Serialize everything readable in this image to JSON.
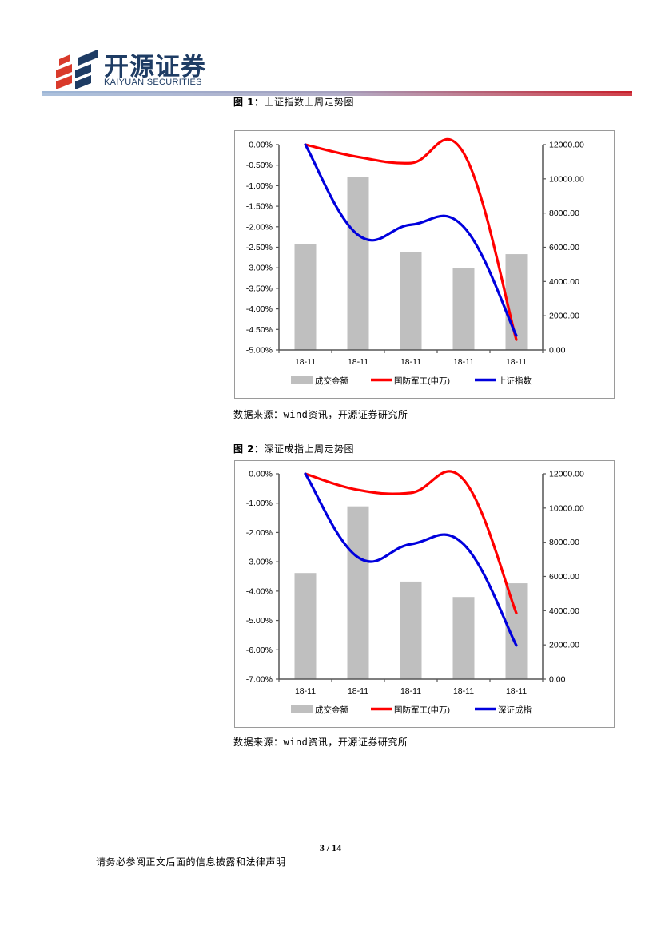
{
  "header": {
    "company_cn": "开源证券",
    "company_en": "KAIYUAN SECURITIES",
    "brand_color": "#1e3c64",
    "logo_accent": "#d93a2b"
  },
  "figures": [
    {
      "label": "图 1：",
      "title": "上证指数上周走势图",
      "source": "数据来源：wind资讯，开源证券研究所"
    },
    {
      "label": "图 2：",
      "title": "深证成指上周走势图",
      "source": "数据来源：wind资讯，开源证券研究所"
    }
  ],
  "chart_data": [
    {
      "type": "bar+line",
      "categories": [
        "18-11",
        "18-11",
        "18-11",
        "18-11",
        "18-11"
      ],
      "left_axis": {
        "min": -5.0,
        "max": 0.0,
        "step": 0.5,
        "format": "percent2",
        "ticks": [
          "0.00%",
          "-0.50%",
          "-1.00%",
          "-1.50%",
          "-2.00%",
          "-2.50%",
          "-3.00%",
          "-3.50%",
          "-4.00%",
          "-4.50%",
          "-5.00%"
        ]
      },
      "right_axis": {
        "min": 0,
        "max": 12000,
        "step": 2000,
        "ticks": [
          "12000.00",
          "10000.00",
          "8000.00",
          "6000.00",
          "4000.00",
          "2000.00",
          "0.00"
        ]
      },
      "bars": {
        "name": "成交金额",
        "axis": "right",
        "color": "#bfbfbf",
        "values": [
          6200,
          10100,
          5700,
          4800,
          5600
        ]
      },
      "series": [
        {
          "name": "国防军工(申万)",
          "axis": "left",
          "color": "#ff0000",
          "values": [
            0.0,
            -0.3,
            -0.45,
            -0.2,
            -4.75
          ]
        },
        {
          "name": "上证指数",
          "axis": "left",
          "color": "#0000dd",
          "values": [
            0.0,
            -2.2,
            -1.95,
            -2.0,
            -4.65
          ]
        }
      ],
      "grid": false,
      "legend": "bottom"
    },
    {
      "type": "bar+line",
      "categories": [
        "18-11",
        "18-11",
        "18-11",
        "18-11",
        "18-11"
      ],
      "left_axis": {
        "min": -7.0,
        "max": 0.0,
        "step": 1.0,
        "format": "percent2",
        "ticks": [
          "0.00%",
          "-1.00%",
          "-2.00%",
          "-3.00%",
          "-4.00%",
          "-5.00%",
          "-6.00%",
          "-7.00%"
        ]
      },
      "right_axis": {
        "min": 0,
        "max": 12000,
        "step": 2000,
        "ticks": [
          "12000.00",
          "10000.00",
          "8000.00",
          "6000.00",
          "4000.00",
          "2000.00",
          "0.00"
        ]
      },
      "bars": {
        "name": "成交金额",
        "axis": "right",
        "color": "#bfbfbf",
        "values": [
          6200,
          10100,
          5700,
          4800,
          5600
        ]
      },
      "series": [
        {
          "name": "国防军工(申万)",
          "axis": "left",
          "color": "#ff0000",
          "values": [
            0.0,
            -0.55,
            -0.65,
            -0.2,
            -4.75
          ]
        },
        {
          "name": "深证成指",
          "axis": "left",
          "color": "#0000dd",
          "values": [
            0.0,
            -2.85,
            -2.4,
            -2.4,
            -5.85
          ]
        }
      ],
      "grid": false,
      "legend": "bottom"
    }
  ],
  "footer": {
    "page": "3 / 14",
    "disclaimer": "请务必参阅正文后面的信息披露和法律声明"
  }
}
